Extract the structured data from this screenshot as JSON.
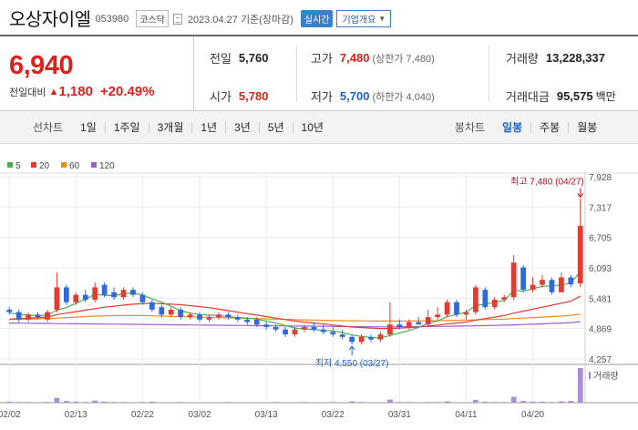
{
  "header": {
    "name": "오상자이엘",
    "code": "053980",
    "market": "코스닥",
    "date_text": "2023.04.27 기준(장마감)",
    "realtime_label": "실시간",
    "company_label": "기업개요"
  },
  "quote": {
    "price": "6,940",
    "change_label": "전일대비",
    "change_arrow": "▲",
    "change_value": "1,180",
    "change_pct": "+20.49%",
    "prev_label": "전일",
    "prev_value": "5,760",
    "high_label": "고가",
    "high_value": "7,480",
    "high_limit": "(상한가 7,480)",
    "volume_label": "거래량",
    "volume_value": "13,228,337",
    "open_label": "시가",
    "open_value": "5,780",
    "low_label": "저가",
    "low_value": "5,700",
    "low_limit": "(하한가 4,040)",
    "amount_label": "거래대금",
    "amount_value": "95,575",
    "amount_unit": "백만"
  },
  "tabs": {
    "line_label": "선차트",
    "line_items": [
      "1일",
      "1주일",
      "3개월",
      "1년",
      "3년",
      "5년",
      "10년"
    ],
    "candle_label": "봉차트",
    "candle_items": [
      "일봉",
      "주봉",
      "월봉"
    ],
    "active_candle": "일봉"
  },
  "chart_data": {
    "type": "candlestick",
    "legend": [
      {
        "name": "5",
        "color": "#4caf50"
      },
      {
        "name": "20",
        "color": "#e53935"
      },
      {
        "name": "60",
        "color": "#ef8c1a"
      },
      {
        "name": "120",
        "color": "#9c5fc9"
      }
    ],
    "y_ticks": [
      4257,
      4869,
      5481,
      6093,
      6705,
      7317,
      7928
    ],
    "y_tick_labels": [
      "4,257",
      "4,869",
      "5,481",
      "6,093",
      "6,705",
      "7,317",
      "7,928"
    ],
    "ylim": [
      4257,
      7928
    ],
    "x_tick_labels": [
      {
        "label": "02/02",
        "index": 0
      },
      {
        "label": "02/13",
        "index": 7
      },
      {
        "label": "02/22",
        "index": 14
      },
      {
        "label": "03/02",
        "index": 20
      },
      {
        "label": "03/13",
        "index": 27
      },
      {
        "label": "03/22",
        "index": 34
      },
      {
        "label": "03/31",
        "index": 41
      },
      {
        "label": "04/11",
        "index": 48
      },
      {
        "label": "04/20",
        "index": 55
      }
    ],
    "high_annotation": "최고 7,480 (04/27)",
    "low_annotation": "최저 4,550 (03/27)",
    "volume_label": "거래량",
    "candles": [
      {
        "o": 5250,
        "h": 5300,
        "l": 5150,
        "c": 5200
      },
      {
        "o": 5200,
        "h": 5250,
        "l": 5000,
        "c": 5050
      },
      {
        "o": 5050,
        "h": 5200,
        "l": 5000,
        "c": 5150
      },
      {
        "o": 5150,
        "h": 5200,
        "l": 5050,
        "c": 5100
      },
      {
        "o": 5050,
        "h": 5250,
        "l": 5000,
        "c": 5200
      },
      {
        "o": 5250,
        "h": 6000,
        "l": 5200,
        "c": 5700
      },
      {
        "o": 5700,
        "h": 5750,
        "l": 5350,
        "c": 5400
      },
      {
        "o": 5400,
        "h": 5600,
        "l": 5350,
        "c": 5550
      },
      {
        "o": 5550,
        "h": 5650,
        "l": 5400,
        "c": 5450
      },
      {
        "o": 5450,
        "h": 5800,
        "l": 5400,
        "c": 5700
      },
      {
        "o": 5750,
        "h": 5800,
        "l": 5500,
        "c": 5550
      },
      {
        "o": 5600,
        "h": 5700,
        "l": 5450,
        "c": 5500
      },
      {
        "o": 5500,
        "h": 5700,
        "l": 5450,
        "c": 5650
      },
      {
        "o": 5650,
        "h": 5700,
        "l": 5500,
        "c": 5550
      },
      {
        "o": 5550,
        "h": 5600,
        "l": 5350,
        "c": 5400
      },
      {
        "o": 5400,
        "h": 5450,
        "l": 5200,
        "c": 5250
      },
      {
        "o": 5300,
        "h": 5350,
        "l": 5100,
        "c": 5150
      },
      {
        "o": 5150,
        "h": 5300,
        "l": 5100,
        "c": 5250
      },
      {
        "o": 5250,
        "h": 5300,
        "l": 5050,
        "c": 5100
      },
      {
        "o": 5100,
        "h": 5200,
        "l": 5050,
        "c": 5150
      },
      {
        "o": 5150,
        "h": 5200,
        "l": 5000,
        "c": 5050
      },
      {
        "o": 5050,
        "h": 5150,
        "l": 5000,
        "c": 5100
      },
      {
        "o": 5100,
        "h": 5200,
        "l": 5050,
        "c": 5150
      },
      {
        "o": 5150,
        "h": 5200,
        "l": 5050,
        "c": 5100
      },
      {
        "o": 5100,
        "h": 5150,
        "l": 5000,
        "c": 5050
      },
      {
        "o": 5050,
        "h": 5100,
        "l": 4950,
        "c": 5000
      },
      {
        "o": 5050,
        "h": 5100,
        "l": 4900,
        "c": 4950
      },
      {
        "o": 4950,
        "h": 5000,
        "l": 4850,
        "c": 4900
      },
      {
        "o": 4900,
        "h": 4950,
        "l": 4800,
        "c": 4850
      },
      {
        "o": 4850,
        "h": 4900,
        "l": 4700,
        "c": 4750
      },
      {
        "o": 4750,
        "h": 4900,
        "l": 4700,
        "c": 4850
      },
      {
        "o": 4850,
        "h": 4950,
        "l": 4800,
        "c": 4900
      },
      {
        "o": 4900,
        "h": 5000,
        "l": 4800,
        "c": 4850
      },
      {
        "o": 4850,
        "h": 4950,
        "l": 4750,
        "c": 4800
      },
      {
        "o": 4800,
        "h": 4900,
        "l": 4700,
        "c": 4750
      },
      {
        "o": 4750,
        "h": 4850,
        "l": 4650,
        "c": 4700
      },
      {
        "o": 4700,
        "h": 4750,
        "l": 4550,
        "c": 4600
      },
      {
        "o": 4600,
        "h": 4750,
        "l": 4550,
        "c": 4700
      },
      {
        "o": 4700,
        "h": 4750,
        "l": 4600,
        "c": 4650
      },
      {
        "o": 4650,
        "h": 4800,
        "l": 4600,
        "c": 4750
      },
      {
        "o": 4750,
        "h": 5400,
        "l": 4700,
        "c": 4950
      },
      {
        "o": 4950,
        "h": 5050,
        "l": 4850,
        "c": 4900
      },
      {
        "o": 4900,
        "h": 5050,
        "l": 4850,
        "c": 5000
      },
      {
        "o": 5000,
        "h": 5100,
        "l": 4950,
        "c": 4950
      },
      {
        "o": 4950,
        "h": 5250,
        "l": 4900,
        "c": 5100
      },
      {
        "o": 5100,
        "h": 5300,
        "l": 5050,
        "c": 5150
      },
      {
        "o": 5150,
        "h": 5450,
        "l": 5100,
        "c": 5400
      },
      {
        "o": 5400,
        "h": 5450,
        "l": 5100,
        "c": 5150
      },
      {
        "o": 5150,
        "h": 5250,
        "l": 5050,
        "c": 5200
      },
      {
        "o": 5200,
        "h": 5750,
        "l": 5150,
        "c": 5700
      },
      {
        "o": 5650,
        "h": 5700,
        "l": 5250,
        "c": 5300
      },
      {
        "o": 5300,
        "h": 5500,
        "l": 5250,
        "c": 5450
      },
      {
        "o": 5450,
        "h": 5550,
        "l": 5400,
        "c": 5500
      },
      {
        "o": 5500,
        "h": 6350,
        "l": 5450,
        "c": 6200
      },
      {
        "o": 6100,
        "h": 6150,
        "l": 5600,
        "c": 5650
      },
      {
        "o": 5650,
        "h": 5900,
        "l": 5600,
        "c": 5750
      },
      {
        "o": 5750,
        "h": 5950,
        "l": 5700,
        "c": 5850
      },
      {
        "o": 5850,
        "h": 5900,
        "l": 5550,
        "c": 5600
      },
      {
        "o": 5600,
        "h": 6000,
        "l": 5600,
        "c": 5900
      },
      {
        "o": 5900,
        "h": 5950,
        "l": 5700,
        "c": 5760
      },
      {
        "o": 5780,
        "h": 7480,
        "l": 5700,
        "c": 6940
      }
    ],
    "ma5": [
      5180,
      5160,
      5140,
      5130,
      5140,
      5240,
      5290,
      5380,
      5460,
      5560,
      5540,
      5530,
      5570,
      5590,
      5540,
      5470,
      5400,
      5320,
      5230,
      5180,
      5150,
      5140,
      5130,
      5110,
      5090,
      5080,
      5060,
      5020,
      4980,
      4930,
      4880,
      4860,
      4850,
      4830,
      4820,
      4790,
      4740,
      4710,
      4690,
      4680,
      4730,
      4780,
      4830,
      4890,
      4980,
      5020,
      5110,
      5150,
      5200,
      5330,
      5360,
      5400,
      5430,
      5640,
      5620,
      5670,
      5720,
      5730,
      5750,
      5780,
      6020
    ],
    "ma20": [
      5060,
      5070,
      5080,
      5090,
      5100,
      5150,
      5180,
      5210,
      5240,
      5270,
      5300,
      5320,
      5340,
      5360,
      5370,
      5380,
      5370,
      5360,
      5350,
      5330,
      5310,
      5290,
      5260,
      5230,
      5200,
      5170,
      5140,
      5110,
      5080,
      5050,
      5020,
      5000,
      4980,
      4960,
      4940,
      4920,
      4900,
      4890,
      4880,
      4870,
      4870,
      4880,
      4890,
      4900,
      4920,
      4940,
      4960,
      4980,
      5000,
      5040,
      5070,
      5100,
      5130,
      5180,
      5220,
      5260,
      5300,
      5340,
      5380,
      5420,
      5520
    ],
    "ma60": [
      5050,
      5055,
      5060,
      5065,
      5070,
      5080,
      5090,
      5100,
      5110,
      5120,
      5125,
      5130,
      5130,
      5130,
      5130,
      5125,
      5120,
      5115,
      5110,
      5105,
      5100,
      5095,
      5090,
      5085,
      5080,
      5075,
      5070,
      5065,
      5060,
      5055,
      5050,
      5045,
      5040,
      5035,
      5030,
      5028,
      5026,
      5024,
      5022,
      5020,
      5020,
      5020,
      5022,
      5024,
      5026,
      5028,
      5030,
      5035,
      5040,
      5045,
      5050,
      5055,
      5060,
      5070,
      5080,
      5090,
      5100,
      5110,
      5120,
      5135,
      5160
    ],
    "ma120": [
      4980,
      4978,
      4976,
      4974,
      4972,
      4970,
      4968,
      4966,
      4964,
      4962,
      4960,
      4958,
      4956,
      4954,
      4952,
      4950,
      4948,
      4946,
      4944,
      4942,
      4940,
      4938,
      4936,
      4934,
      4932,
      4930,
      4928,
      4926,
      4924,
      4922,
      4920,
      4918,
      4916,
      4914,
      4912,
      4910,
      4908,
      4906,
      4905,
      4904,
      4904,
      4905,
      4906,
      4908,
      4910,
      4912,
      4915,
      4918,
      4921,
      4925,
      4929,
      4933,
      4938,
      4944,
      4950,
      4957,
      4964,
      4972,
      4980,
      4990,
      5005
    ],
    "volume": [
      3,
      2,
      2,
      1,
      2,
      14,
      5,
      3,
      2,
      6,
      3,
      2,
      2,
      1,
      2,
      3,
      1,
      1,
      2,
      1,
      1,
      1,
      1,
      2,
      1,
      1,
      1,
      1,
      2,
      1,
      1,
      2,
      1,
      1,
      2,
      1,
      4,
      2,
      1,
      1,
      9,
      2,
      2,
      1,
      2,
      2,
      4,
      1,
      1,
      8,
      3,
      2,
      2,
      17,
      5,
      3,
      3,
      2,
      4,
      5,
      100
    ]
  }
}
